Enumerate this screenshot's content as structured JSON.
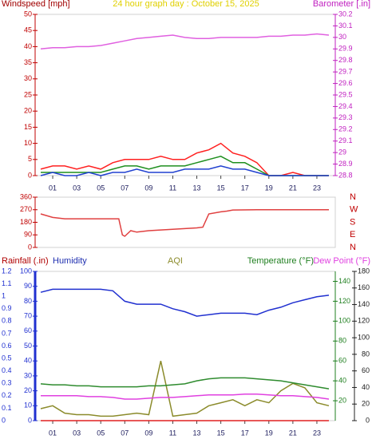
{
  "chart_data": [
    {
      "type": "line",
      "title": "24 hour graph day : October 15, 2025",
      "x": [
        0,
        1,
        2,
        3,
        4,
        5,
        6,
        7,
        8,
        9,
        10,
        11,
        12,
        13,
        14,
        15,
        16,
        17,
        18,
        19,
        20,
        21,
        22,
        23,
        24
      ],
      "xlim": [
        0,
        24
      ],
      "xticks": [
        {
          "value": 1,
          "label": "01"
        },
        {
          "value": 3,
          "label": "03"
        },
        {
          "value": 5,
          "label": "05"
        },
        {
          "value": 7,
          "label": "07"
        },
        {
          "value": 9,
          "label": "09"
        },
        {
          "value": 11,
          "label": "11"
        },
        {
          "value": 13,
          "label": "13"
        },
        {
          "value": 15,
          "label": "15"
        },
        {
          "value": 17,
          "label": "17"
        },
        {
          "value": 19,
          "label": "19"
        },
        {
          "value": 21,
          "label": "21"
        },
        {
          "value": 23,
          "label": "23"
        }
      ],
      "ylim": [
        0,
        50
      ],
      "yticks": [
        0,
        5,
        10,
        15,
        20,
        25,
        30,
        35,
        40,
        45,
        50
      ],
      "y2lim": [
        28.8,
        30.2
      ],
      "y2ticks": [
        28.8,
        28.9,
        29,
        29.1,
        29.2,
        29.3,
        29.4,
        29.5,
        29.6,
        29.7,
        29.8,
        29.9,
        30,
        30.1,
        30.2
      ],
      "series": [
        {
          "name": "Windspeed [mph]",
          "color": "#ff2020",
          "values": [
            2,
            3,
            3,
            2,
            3,
            2,
            4,
            5,
            5,
            5,
            6,
            5,
            5,
            7,
            8,
            10,
            7,
            6,
            4,
            0,
            0,
            1,
            0,
            0,
            0
          ]
        },
        {
          "color": "#1f8f1f",
          "values": [
            1,
            1,
            1,
            1,
            1,
            1,
            2,
            3,
            3,
            2,
            3,
            3,
            3,
            4,
            5,
            6,
            4,
            4,
            2,
            0,
            0,
            0,
            0,
            0,
            0
          ]
        },
        {
          "color": "#2040d0",
          "values": [
            0,
            1,
            0,
            0,
            1,
            0,
            1,
            1,
            2,
            1,
            1,
            1,
            2,
            2,
            2,
            3,
            2,
            2,
            1,
            0,
            0,
            0,
            0,
            0,
            0
          ]
        },
        {
          "name": "Barometer [.in]",
          "color": "#e060e0",
          "axis": "y2",
          "values": [
            29.9,
            29.91,
            29.91,
            29.92,
            29.92,
            29.93,
            29.95,
            29.97,
            29.99,
            30.0,
            30.01,
            30.02,
            30.0,
            29.99,
            29.99,
            30.0,
            30.0,
            30.0,
            30.0,
            30.01,
            30.01,
            30.02,
            30.02,
            30.03,
            30.02
          ]
        }
      ]
    },
    {
      "type": "line",
      "x": [
        0,
        1,
        2,
        3,
        4,
        5,
        6,
        6.5,
        6.8,
        7,
        7.5,
        8,
        9,
        10,
        11,
        12,
        13,
        13.5,
        14,
        15,
        15.5,
        16,
        18,
        20,
        22,
        24
      ],
      "xlim": [
        0,
        24
      ],
      "ylim": [
        0,
        360
      ],
      "yticks": [
        0,
        90,
        180,
        270,
        360
      ],
      "compass": [
        "N",
        "W",
        "S",
        "E",
        "N"
      ],
      "series": [
        {
          "color": "#e04040",
          "values": [
            240,
            215,
            205,
            205,
            205,
            205,
            205,
            205,
            90,
            80,
            120,
            110,
            120,
            125,
            130,
            135,
            140,
            145,
            240,
            255,
            260,
            268,
            270,
            270,
            270,
            270
          ]
        }
      ]
    },
    {
      "type": "line",
      "x": [
        0,
        1,
        2,
        3,
        4,
        5,
        6,
        7,
        8,
        9,
        10,
        11,
        12,
        13,
        14,
        15,
        16,
        17,
        18,
        19,
        20,
        21,
        22,
        23,
        24
      ],
      "xlim": [
        0,
        24
      ],
      "xticks": [
        {
          "value": 1,
          "label": "01"
        },
        {
          "value": 3,
          "label": "03"
        },
        {
          "value": 5,
          "label": "05"
        },
        {
          "value": 7,
          "label": "07"
        },
        {
          "value": 9,
          "label": "09"
        },
        {
          "value": 11,
          "label": "11"
        },
        {
          "value": 13,
          "label": "13"
        },
        {
          "value": 15,
          "label": "15"
        },
        {
          "value": 17,
          "label": "17"
        },
        {
          "value": 19,
          "label": "19"
        },
        {
          "value": 21,
          "label": "21"
        },
        {
          "value": 23,
          "label": "23"
        }
      ],
      "ylim": [
        0,
        1.2
      ],
      "yticks": [
        0,
        0.1,
        0.2,
        0.3,
        0.4,
        0.5,
        0.6,
        0.7,
        0.8,
        0.9,
        1,
        1.1,
        1.2
      ],
      "y2lim": [
        0,
        100
      ],
      "y2ticks": [
        0,
        10,
        20,
        30,
        40,
        50,
        60,
        70,
        80,
        90,
        100
      ],
      "y3lim": [
        0,
        150
      ],
      "y3ticks": [
        20,
        40,
        60,
        80,
        100,
        120,
        140
      ],
      "y4lim": [
        0,
        180
      ],
      "y4ticks": [
        0,
        20,
        40,
        60,
        80,
        100,
        120,
        140,
        160,
        180
      ],
      "series": [
        {
          "name": "Rainfall (.in)",
          "color": "#e02020",
          "values": [
            0,
            0,
            0,
            0,
            0,
            0,
            0,
            0,
            0,
            0,
            0,
            0,
            0,
            0,
            0,
            0,
            0,
            0,
            0,
            0,
            0,
            0,
            0,
            0,
            0
          ]
        },
        {
          "name": "Humidity",
          "color": "#2030d0",
          "axis": "y2",
          "values": [
            86,
            88,
            88,
            88,
            88,
            88,
            87,
            80,
            78,
            78,
            78,
            75,
            73,
            70,
            71,
            72,
            72,
            72,
            71,
            74,
            76,
            79,
            81,
            83,
            84
          ]
        },
        {
          "name": "AQI",
          "color": "#8b8b2b",
          "axis": "y2",
          "values": [
            8,
            10,
            5,
            4,
            4,
            3,
            3,
            4,
            5,
            4,
            40,
            3,
            4,
            5,
            10,
            12,
            14,
            10,
            14,
            12,
            20,
            25,
            22,
            12,
            10
          ]
        },
        {
          "name": "Temperature (°F)",
          "color": "#2e8b2e",
          "axis": "y3",
          "values": [
            37,
            36,
            36,
            35,
            35,
            34,
            34,
            34,
            34,
            35,
            35,
            36,
            37,
            40,
            42,
            43,
            43,
            43,
            42,
            41,
            40,
            38,
            36,
            34,
            32
          ]
        },
        {
          "name": "Dew Point (°F)",
          "color": "#e040e0",
          "axis": "y4",
          "values": [
            30,
            30,
            30,
            30,
            29,
            29,
            28,
            26,
            26,
            27,
            28,
            28,
            29,
            30,
            31,
            31,
            31,
            32,
            32,
            31,
            30,
            30,
            29,
            28,
            26
          ]
        }
      ]
    }
  ]
}
